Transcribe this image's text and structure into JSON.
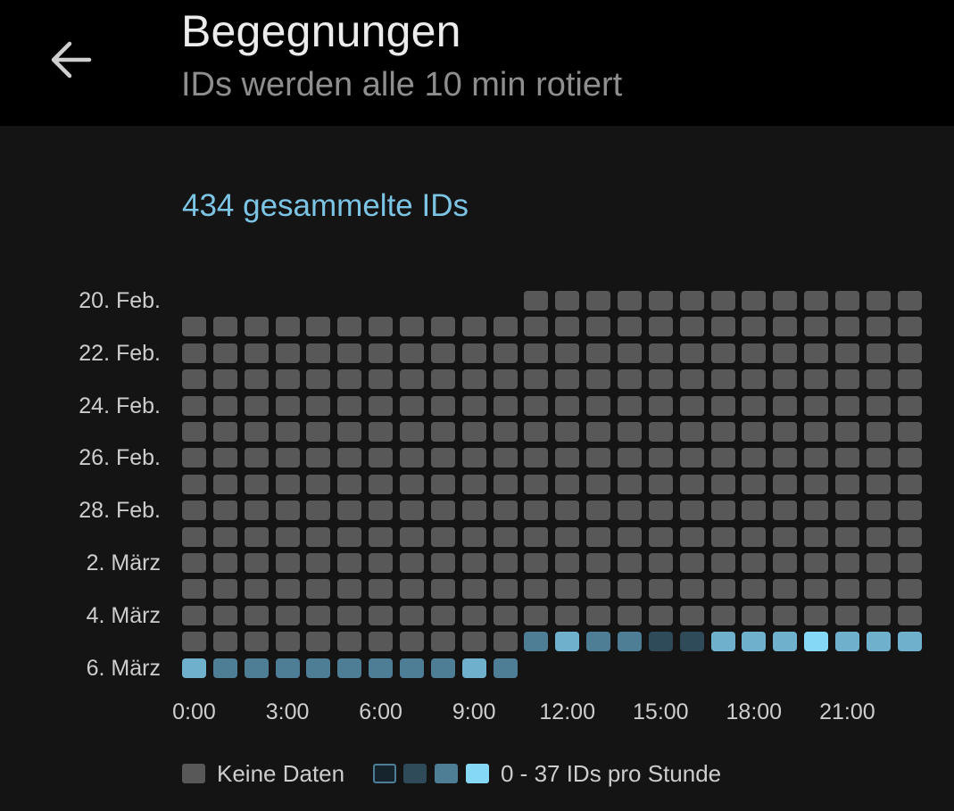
{
  "header": {
    "title": "Begegnungen",
    "subtitle": "IDs werden alle 10 min rotiert",
    "back_icon": "arrow-left-icon"
  },
  "summary": {
    "count_text": "434 gesammelte IDs",
    "accent": "#7cc4e4"
  },
  "colors": {
    "no_data": "#585858",
    "scale": [
      "#16252d",
      "#2f4b59",
      "#4d7e95",
      "#6fb0cd",
      "#86d9f6"
    ]
  },
  "legend": {
    "no_data_label": "Keine Daten",
    "scale_label": "0 - 37 IDs pro Stunde"
  },
  "chart_data": {
    "type": "heatmap",
    "y_tick_labels": [
      "20. Feb.",
      "22. Feb.",
      "24. Feb.",
      "26. Feb.",
      "28. Feb.",
      "2. März",
      "4. März",
      "6. März"
    ],
    "rows": [
      "20. Feb.",
      "21. Feb.",
      "22. Feb.",
      "23. Feb.",
      "24. Feb.",
      "25. Feb.",
      "26. Feb.",
      "27. Feb.",
      "28. Feb.",
      "1. März",
      "2. März",
      "3. März",
      "4. März",
      "5. März",
      "6. März"
    ],
    "x_tick_labels": [
      "0:00",
      "3:00",
      "6:00",
      "9:00",
      "12:00",
      "15:00",
      "18:00",
      "21:00"
    ],
    "hours": 24,
    "value_range": [
      0,
      37
    ],
    "first_hour_20_feb": 11,
    "last_hour_6_maerz": 10,
    "intensity_levels_5_maerz": [
      0,
      0,
      0,
      0,
      0,
      0,
      0,
      0,
      0,
      0,
      0,
      2,
      3,
      2,
      2,
      1,
      1,
      3,
      3,
      3,
      4,
      3,
      3,
      3
    ],
    "intensity_levels_6_maerz": [
      3,
      2,
      2,
      2,
      2,
      2,
      2,
      2,
      2,
      3,
      2
    ],
    "note_levels": "0 = Keine Daten, 1-4 = Farbstufen der Skala"
  }
}
